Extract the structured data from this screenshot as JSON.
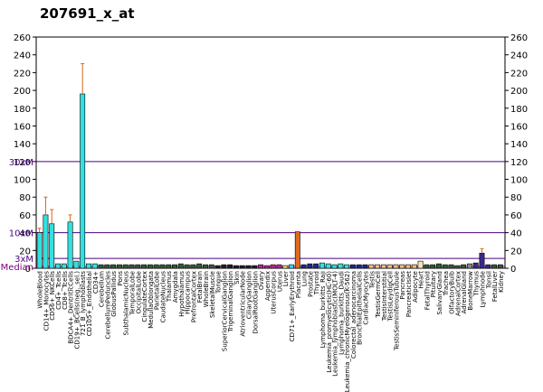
{
  "chart_data": {
    "type": "bar",
    "title": "207691_x_at",
    "ylim": [
      0,
      260
    ],
    "y_ticks": [
      "0",
      "20",
      "40",
      "60",
      "80",
      "100",
      "120",
      "140",
      "160",
      "180",
      "200",
      "220",
      "240",
      "260"
    ],
    "reference_lines": [
      {
        "label": "Median",
        "value": 2,
        "color": "#800080"
      },
      {
        "label": "3xM",
        "value": 11,
        "color": "#4b0082"
      },
      {
        "label": "10xM",
        "value": 40,
        "color": "#4b0082"
      },
      {
        "label": "30xM",
        "value": 120,
        "color": "#4b0082"
      }
    ],
    "categories": [
      "WholeBlood",
      "CD14+_Monocytes",
      "CD56+_NKCells",
      "CD4+_Tcells",
      "CD8+_Tcells",
      "BDCA4+_DentriticCells",
      "CD19+_BCells(neg._sel.)",
      "721_B_lymphoblasts",
      "CD105+_Endothelial",
      "CD34+",
      "Cerebellum",
      "CerebellumPeduncles",
      "GlobusPallidus",
      "Pons",
      "SubthalamicNucleus",
      "TemporalLobe",
      "OccipitalLobe",
      "CingulateCortex",
      "MedullaOblongata",
      "ParietalLobe",
      "CaudateNucleus",
      "Thalamus",
      "Amygdala",
      "Hypothalamus",
      "Hippocampus",
      "PrefrontalCortex",
      "FetalBrain",
      "WholeBrain",
      "SkeletalMuscle",
      "Tongue",
      "SuperiorCervicalGanglion",
      "TrigeminalGanglion",
      "Skin",
      "AtrioventricularNode",
      "CiliaryGanglion",
      "DorsalRootGanglion",
      "Ovary",
      "Appendix",
      "UterusCorpus",
      "Uterus",
      "Liver",
      "CD71+_EarlyErythroid",
      "Placenta",
      "Lung",
      "Prostate",
      "Thyroid",
      "Lymphoma_burkitts_Raji",
      "Leukemia_promyelocytic(HL-60)",
      "Leukemia_lymphoblastic(MOLT-4)",
      "Lymphoma_burkitts_Daudi",
      "Leukemia_chronicMyelogenous(K-562)",
      "Colorectal_adenocarcinoma",
      "BronchialEpithelialCells",
      "CardiacMyocytes",
      "Testis",
      "TestisGermCell",
      "TestisInterstitial",
      "TestisLeydigCell",
      "TestisSeminiferousTubule",
      "Pancreas",
      "PancreaticIslet",
      "Adipocyte",
      "Heart",
      "FetalThyroid",
      "Pituitary",
      "SalivaryGland",
      "Trachea",
      "OlfactoryBulb",
      "AdrenalCortex",
      "AdrenalGland",
      "BoneMarrow",
      "Thymus",
      "Lymphnode",
      "Tonsil",
      "FetalLiver",
      "Kidney"
    ],
    "x_tick_labels": [
      "WholeBlood",
      "CD14+_Monocytes",
      "CD56+_NKCells",
      "CD4+_Tcells",
      "CD8+_Tcells",
      "BDCA4+_DentriticCells",
      "CD19+_BCells(neg._sel.)",
      "721_B_lymphoblasts",
      "CD105+_Endothelial",
      "CD34+",
      "Cerebellum",
      "CerebellumPeduncles",
      "GlobusPallidus",
      "Pons",
      "SubthalamicNucleus",
      "TemporalLobe",
      "OccipitalLobe",
      "CingulateCortex",
      "MedullaOblongata",
      "ParietalLobe",
      "CaudateNucleus",
      "Thalamus",
      "Amygdala",
      "Hypothalamus",
      "Hippocampus",
      "PrefrontalCortex",
      "FetalBrain",
      "WholeBrain",
      "SkeletalMuscle",
      "Tongue",
      "SuperiorCervicalGanglion",
      "TrigeminalGanglion",
      "Skin",
      "AtrioventricularNode",
      "CiliaryGanglion",
      "DorsalRootGanglion",
      "Ovary",
      "Appendix",
      "UterusCorpus",
      "Uterus",
      "Liver",
      "CD71+_EarlyErythroid",
      "Placenta",
      "Lung",
      "Prostate",
      "Thyroid",
      "Lymphoma_burkitts_Raji",
      "Leukemia_promyelocytic(HL-60)",
      "Leukemia_lymphoblastic(MOLT-4)",
      "Lymphoma_burkitts_Daudi",
      "Leukemia_chronicMyelogenous(K-562)",
      "Colorectal_adenocarcinoma",
      "BronchialEpithelialCells",
      "CardiacMyocytes",
      "Testis",
      "TestisGermCell",
      "TestisInterstitial",
      "TestisLeydigCell",
      "TestisSeminiferousTubule",
      "Pancreas",
      "PancreaticIslet",
      "Adipocyte",
      "Heart",
      "FetalThyroid",
      "Pituitary",
      "SalivaryGland",
      "Trachea",
      "OlfactoryBulb",
      "AdrenalCortex",
      "AdrenalGland",
      "BoneMarrow",
      "Thymus",
      "Lymphnode",
      "Tonsil",
      "FetalLiver",
      "Kidney"
    ],
    "values": [
      40,
      60,
      50,
      5,
      5,
      52,
      8,
      196,
      5,
      5,
      4,
      4,
      4,
      4,
      4,
      4,
      4,
      4,
      4,
      4,
      4,
      4,
      4,
      5,
      4,
      4,
      5,
      4,
      4,
      3,
      4,
      4,
      3,
      3,
      3,
      3,
      4,
      3,
      4,
      4,
      3,
      4,
      41,
      4,
      5,
      5,
      6,
      5,
      4,
      5,
      4,
      4,
      4,
      4,
      4,
      4,
      4,
      4,
      4,
      4,
      4,
      4,
      8,
      4,
      4,
      5,
      4,
      4,
      3,
      4,
      5,
      6,
      17,
      4,
      4,
      4
    ],
    "errors": [
      5,
      20,
      16,
      0,
      0,
      8,
      0,
      34,
      0,
      0,
      0,
      0,
      0,
      0,
      0,
      0,
      0,
      0,
      0,
      0,
      0,
      0,
      0,
      0,
      0,
      0,
      0,
      0,
      0,
      0,
      0,
      0,
      0,
      0,
      0,
      0,
      0,
      0,
      0,
      0,
      0,
      0,
      0,
      0,
      0,
      0,
      0,
      0,
      0,
      0,
      0,
      0,
      0,
      0,
      0,
      0,
      0,
      0,
      0,
      0,
      0,
      0,
      0,
      0,
      0,
      0,
      0,
      0,
      0,
      0,
      0,
      0,
      5,
      0,
      0,
      0
    ],
    "colors": [
      "#33e0e0",
      "#33e0e0",
      "#33e0e0",
      "#33e0e0",
      "#33e0e0",
      "#33e0e0",
      "#33e0e0",
      "#33e0e0",
      "#33e0e0",
      "#33e0e0",
      "#2f5e2f",
      "#2f5e2f",
      "#2f5e2f",
      "#2f5e2f",
      "#2f5e2f",
      "#2f5e2f",
      "#2f5e2f",
      "#2f5e2f",
      "#2f5e2f",
      "#2f5e2f",
      "#2f5e2f",
      "#2f5e2f",
      "#2f5e2f",
      "#2f5e2f",
      "#2f5e2f",
      "#2f5e2f",
      "#2f5e2f",
      "#2f5e2f",
      "#2f5e2f",
      "#202020",
      "#202020",
      "#202020",
      "#202020",
      "#202020",
      "#202020",
      "#202020",
      "#c0209a",
      "#c0209a",
      "#c0209a",
      "#c0209a",
      "#f0e070",
      "#33e0e0",
      "#e06a20",
      "#1a2a8a",
      "#1a2a8a",
      "#1a2a8a",
      "#33e0e0",
      "#33e0e0",
      "#33e0e0",
      "#33e0e0",
      "#33e0e0",
      "#1a2a8a",
      "#1a2a8a",
      "#1a2a8a",
      "#f0c080",
      "#f0c080",
      "#f0c080",
      "#f0c080",
      "#f0c080",
      "#f0c080",
      "#f0c080",
      "#f0c080",
      "#f5e6b8",
      "#2f5e2f",
      "#2f5e2f",
      "#2f5e2f",
      "#2f5e2f",
      "#2f5e2f",
      "#2f5e2f",
      "#2f5e2f",
      "#888888",
      "#3a2a8a",
      "#3a2a8a",
      "#3a2a8a",
      "#2f5e2f",
      "#2f5e2f"
    ],
    "grid": false,
    "legend": "none"
  }
}
